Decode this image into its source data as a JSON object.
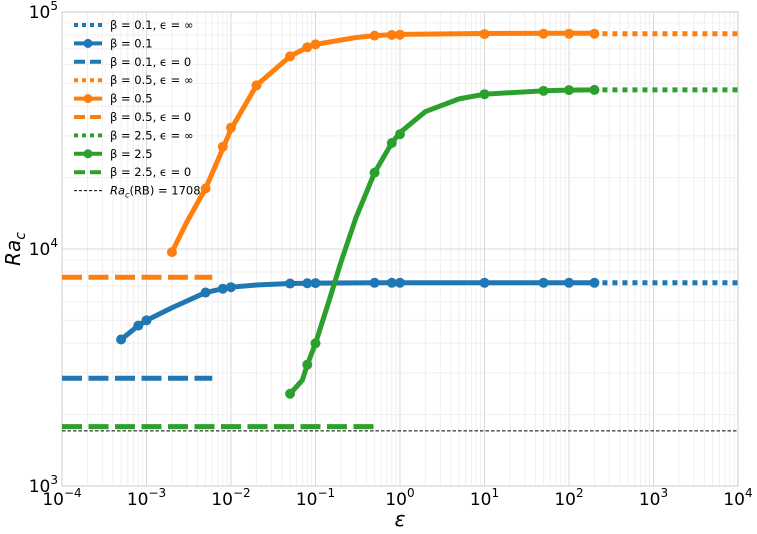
{
  "chart_data": {
    "type": "line",
    "xlabel": "ε",
    "ylabel": "Ra",
    "ylabel_sub": "c",
    "x_scale": "log",
    "y_scale": "log",
    "xlim": [
      0.0001,
      10000
    ],
    "ylim": [
      1000,
      100000
    ],
    "grid": true,
    "legend_position": "upper-left",
    "x_ticks": [
      {
        "base": "10",
        "exp": "−4"
      },
      {
        "base": "10",
        "exp": "−3"
      },
      {
        "base": "10",
        "exp": "−2"
      },
      {
        "base": "10",
        "exp": "−1"
      },
      {
        "base": "10",
        "exp": "0"
      },
      {
        "base": "10",
        "exp": "1"
      },
      {
        "base": "10",
        "exp": "2"
      },
      {
        "base": "10",
        "exp": "3"
      },
      {
        "base": "10",
        "exp": "4"
      }
    ],
    "y_ticks": [
      {
        "base": "10",
        "exp": "3"
      },
      {
        "base": "10",
        "exp": "4"
      },
      {
        "base": "10",
        "exp": "5"
      }
    ],
    "series": [
      {
        "name": "β = 0.1",
        "color": "#1f77b4",
        "curve": [
          [
            0.0005,
            4150
          ],
          [
            0.0008,
            4750
          ],
          [
            0.001,
            5000
          ],
          [
            0.002,
            5650
          ],
          [
            0.005,
            6550
          ],
          [
            0.008,
            6800
          ],
          [
            0.01,
            6900
          ],
          [
            0.02,
            7050
          ],
          [
            0.05,
            7150
          ],
          [
            0.1,
            7180
          ],
          [
            0.5,
            7200
          ],
          [
            1,
            7200
          ],
          [
            10,
            7200
          ],
          [
            100,
            7200
          ],
          [
            200,
            7200
          ]
        ],
        "points": [
          [
            0.0005,
            4150
          ],
          [
            0.0008,
            4750
          ],
          [
            0.001,
            5000
          ],
          [
            0.005,
            6550
          ],
          [
            0.008,
            6800
          ],
          [
            0.01,
            6900
          ],
          [
            0.05,
            7150
          ],
          [
            0.08,
            7170
          ],
          [
            0.1,
            7180
          ],
          [
            0.5,
            7200
          ],
          [
            0.8,
            7200
          ],
          [
            1,
            7200
          ],
          [
            10,
            7200
          ],
          [
            50,
            7200
          ],
          [
            100,
            7200
          ],
          [
            200,
            7200
          ]
        ],
        "eps_inf": 7200,
        "eps_inf_from": 200,
        "eps_zero": 2850,
        "eps_zero_to": 0.006
      },
      {
        "name": "β = 0.5",
        "color": "#ff7f0e",
        "curve": [
          [
            0.002,
            9700
          ],
          [
            0.003,
            13000
          ],
          [
            0.005,
            18000
          ],
          [
            0.008,
            26500
          ],
          [
            0.01,
            32000
          ],
          [
            0.02,
            49000
          ],
          [
            0.05,
            65000
          ],
          [
            0.08,
            71000
          ],
          [
            0.1,
            73000
          ],
          [
            0.3,
            78000
          ],
          [
            0.5,
            79500
          ],
          [
            1,
            80500
          ],
          [
            10,
            81200
          ],
          [
            100,
            81300
          ],
          [
            200,
            81300
          ]
        ],
        "points": [
          [
            0.002,
            9700
          ],
          [
            0.005,
            18000
          ],
          [
            0.008,
            27000
          ],
          [
            0.01,
            32500
          ],
          [
            0.02,
            49000
          ],
          [
            0.05,
            65000
          ],
          [
            0.08,
            71000
          ],
          [
            0.1,
            73000
          ],
          [
            0.5,
            79500
          ],
          [
            0.8,
            80000
          ],
          [
            1,
            80200
          ],
          [
            10,
            80700
          ],
          [
            50,
            81000
          ],
          [
            100,
            81000
          ],
          [
            200,
            81000
          ]
        ],
        "eps_inf": 81000,
        "eps_inf_from": 200,
        "eps_zero": 7600,
        "eps_zero_to": 0.006
      },
      {
        "name": "β = 2.5",
        "color": "#2ca02c",
        "curve": [
          [
            0.05,
            2450
          ],
          [
            0.07,
            2800
          ],
          [
            0.08,
            3250
          ],
          [
            0.1,
            4000
          ],
          [
            0.15,
            6300
          ],
          [
            0.2,
            8800
          ],
          [
            0.3,
            13500
          ],
          [
            0.5,
            21000
          ],
          [
            0.8,
            28000
          ],
          [
            1,
            31000
          ],
          [
            2,
            38000
          ],
          [
            5,
            43000
          ],
          [
            10,
            45000
          ],
          [
            50,
            46500
          ],
          [
            100,
            46800
          ],
          [
            200,
            46900
          ]
        ],
        "points": [
          [
            0.05,
            2450
          ],
          [
            0.08,
            3250
          ],
          [
            0.1,
            4000
          ],
          [
            0.5,
            21000
          ],
          [
            0.8,
            28000
          ],
          [
            1,
            30500
          ],
          [
            10,
            45000
          ],
          [
            50,
            46500
          ],
          [
            100,
            46800
          ],
          [
            200,
            46900
          ]
        ],
        "eps_inf": 46900,
        "eps_inf_from": 200,
        "eps_zero": 1780,
        "eps_zero_to": 0.5
      }
    ],
    "reference_line": {
      "value": 1708,
      "color": "#000000"
    },
    "legend": [
      {
        "label": "β = 0.1, ϵ = ∞",
        "color": "#1f77b4",
        "style": "dotted"
      },
      {
        "label": "β = 0.1",
        "color": "#1f77b4",
        "style": "solid-marker"
      },
      {
        "label": "β = 0.1, ϵ = 0",
        "color": "#1f77b4",
        "style": "dashed"
      },
      {
        "label": "β = 0.5, ϵ = ∞",
        "color": "#ff7f0e",
        "style": "dotted"
      },
      {
        "label": "β = 0.5",
        "color": "#ff7f0e",
        "style": "solid-marker"
      },
      {
        "label": "β = 0.5, ϵ = 0",
        "color": "#ff7f0e",
        "style": "dashed"
      },
      {
        "label": "β = 2.5, ϵ = ∞",
        "color": "#2ca02c",
        "style": "dotted"
      },
      {
        "label": "β = 2.5",
        "color": "#2ca02c",
        "style": "solid-marker"
      },
      {
        "label": "β = 2.5, ϵ = 0",
        "color": "#2ca02c",
        "style": "dashed"
      },
      {
        "label": "Ra",
        "label_sub": "c",
        "label_rest": "(RB) = 1708",
        "color": "#000000",
        "style": "thin-dashed"
      }
    ]
  }
}
